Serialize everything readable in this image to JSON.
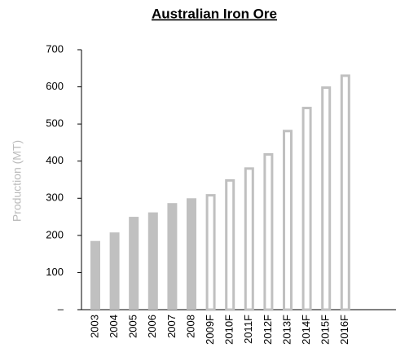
{
  "chart_data": {
    "type": "bar",
    "title": "Australian Iron Ore",
    "y_label": "Production (MT)",
    "categories": [
      "2003",
      "2004",
      "2005",
      "2006",
      "2007",
      "2008",
      "2009F",
      "2010F",
      "2011F",
      "2012F",
      "2013F",
      "2014F",
      "2015F",
      "2016F"
    ],
    "values": [
      185,
      208,
      250,
      262,
      287,
      300,
      308,
      348,
      380,
      418,
      481,
      543,
      598,
      630
    ],
    "bar_styles": [
      "solid",
      "solid",
      "solid",
      "solid",
      "solid",
      "solid",
      "outline",
      "outline",
      "outline",
      "outline",
      "outline",
      "outline",
      "outline",
      "outline"
    ],
    "color": "#c0c0c0",
    "ylim": [
      0,
      700
    ],
    "yticks": [
      {
        "value": 0,
        "label": "–"
      },
      100,
      200,
      300,
      400,
      500,
      600,
      700
    ]
  }
}
